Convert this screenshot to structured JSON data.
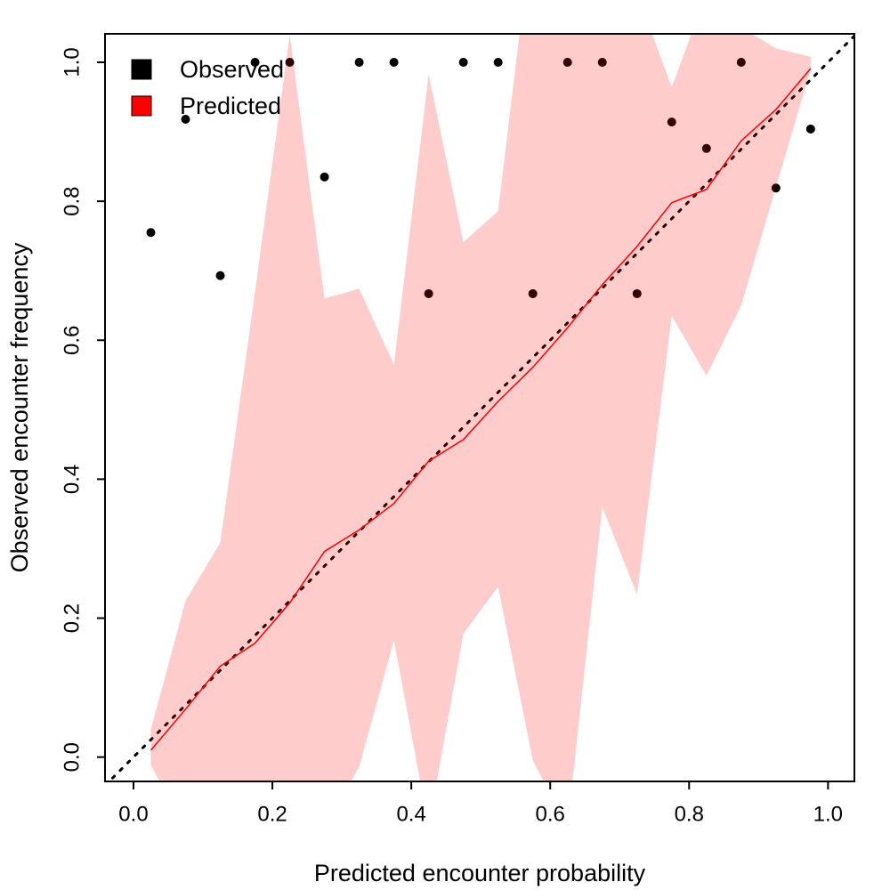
{
  "chart_data": {
    "type": "scatter",
    "x_label": "Predicted encounter probability",
    "y_label": "Observed encounter frequency",
    "x": [
      0.025,
      0.075,
      0.125,
      0.175,
      0.225,
      0.275,
      0.325,
      0.375,
      0.425,
      0.475,
      0.525,
      0.575,
      0.625,
      0.675,
      0.725,
      0.775,
      0.825,
      0.875,
      0.925,
      0.975
    ],
    "series": [
      {
        "name": "Observed",
        "color": "#000000",
        "values": [
          0.755,
          0.918,
          0.693,
          1.0,
          1.0,
          0.835,
          1.0,
          1.0,
          0.667,
          1.0,
          1.0,
          0.667,
          1.0,
          1.0,
          0.667,
          0.914,
          0.876,
          1.0,
          0.819,
          0.904
        ]
      },
      {
        "name": "Predicted",
        "color": "#ff0000",
        "band_color": "rgba(255,0,0,0.2)",
        "values": [
          0.01,
          0.069,
          0.131,
          0.164,
          0.222,
          0.296,
          0.327,
          0.365,
          0.426,
          0.457,
          0.512,
          0.561,
          0.618,
          0.68,
          0.735,
          0.798,
          0.817,
          0.887,
          0.932,
          0.991
        ],
        "upper": [
          0.04,
          0.225,
          0.309,
          0.67,
          1.04,
          0.66,
          0.674,
          0.565,
          0.983,
          0.741,
          0.786,
          1.2,
          1.2,
          1.1,
          1.1,
          0.964,
          1.1,
          1.05,
          1.02,
          1.008
        ],
        "lower": [
          -0.012,
          -0.1,
          -0.1,
          -0.1,
          -0.1,
          -0.1,
          -0.014,
          0.168,
          -0.1,
          0.178,
          0.245,
          -0.005,
          -0.1,
          0.36,
          0.234,
          0.635,
          0.549,
          0.65,
          0.82,
          0.99
        ]
      }
    ],
    "reference_line": "dotted",
    "xlim": [
      -0.041,
      1.038
    ],
    "ylim": [
      -0.035,
      1.041
    ],
    "xticks": [
      {
        "value": 0,
        "label": "0.0"
      },
      {
        "value": 0.2,
        "label": "0.2"
      },
      {
        "value": 0.4,
        "label": "0.4"
      },
      {
        "value": 0.6,
        "label": "0.6"
      },
      {
        "value": 0.8,
        "label": "0.8"
      },
      {
        "value": 1,
        "label": "1.0"
      }
    ],
    "yticks": [
      {
        "value": 0,
        "label": "0.0"
      },
      {
        "value": 0.2,
        "label": "0.2"
      },
      {
        "value": 0.4,
        "label": "0.4"
      },
      {
        "value": 0.6,
        "label": "0.6"
      },
      {
        "value": 0.8,
        "label": "0.8"
      },
      {
        "value": 1,
        "label": "1.0"
      }
    ],
    "legend": "top-left"
  }
}
